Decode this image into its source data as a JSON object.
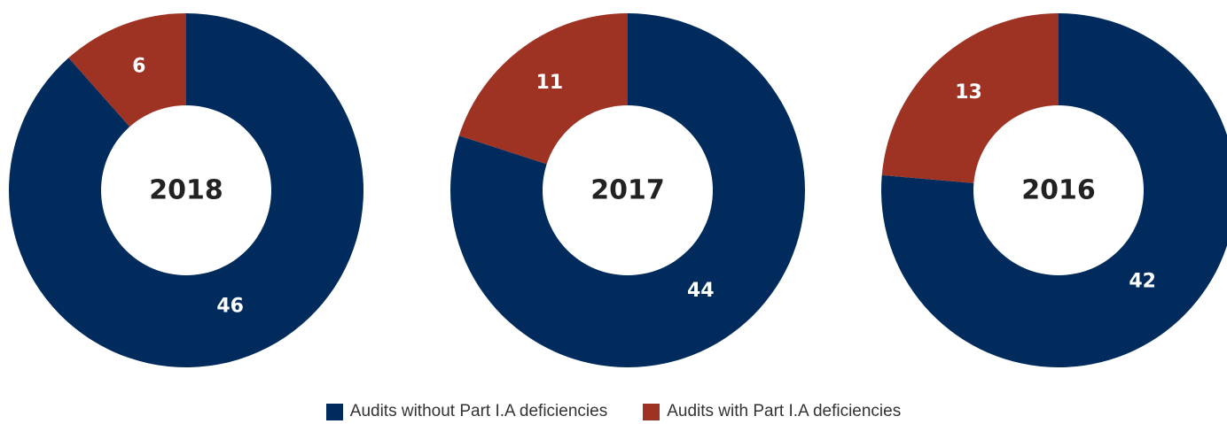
{
  "colors": {
    "without": "#002b5c",
    "with": "#9e3223",
    "hole": "#ffffff"
  },
  "legend": {
    "without_label": "Audits without Part I.A deficiencies",
    "with_label": "Audits with Part I.A deficiencies"
  },
  "chart_data": [
    {
      "type": "pie",
      "variant": "donut",
      "center_label": "2018",
      "slices": [
        {
          "name": "Audits without Part I.A deficiencies",
          "value": 46
        },
        {
          "name": "Audits with Part I.A deficiencies",
          "value": 6
        }
      ]
    },
    {
      "type": "pie",
      "variant": "donut",
      "center_label": "2017",
      "slices": [
        {
          "name": "Audits without Part I.A deficiencies",
          "value": 44
        },
        {
          "name": "Audits with Part I.A deficiencies",
          "value": 11
        }
      ]
    },
    {
      "type": "pie",
      "variant": "donut",
      "center_label": "2016",
      "slices": [
        {
          "name": "Audits without Part I.A deficiencies",
          "value": 42
        },
        {
          "name": "Audits with Part I.A deficiencies",
          "value": 13
        }
      ]
    }
  ]
}
